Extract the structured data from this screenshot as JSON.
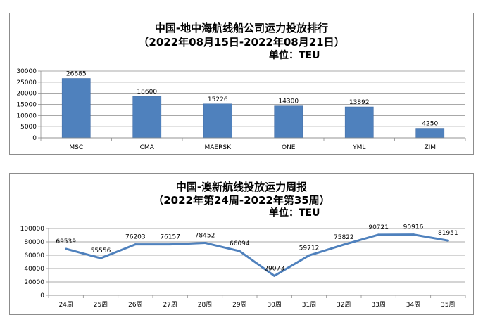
{
  "chart_data": [
    {
      "type": "bar",
      "title": "中国-地中海航线船公司运力投放排行",
      "subtitle": "（2022年08月15日-2022年08月21日）",
      "unit_label": "单位：TEU",
      "categories": [
        "MSC",
        "CMA",
        "MAERSK",
        "ONE",
        "YML",
        "ZIM"
      ],
      "values": [
        26685,
        18600,
        15226,
        14300,
        13892,
        4250
      ],
      "data_labels": [
        "26685",
        "18600",
        "15226",
        "14300",
        "13892",
        "4250"
      ],
      "ylim": [
        0,
        30000
      ],
      "yticks": [
        0,
        5000,
        10000,
        15000,
        20000,
        25000,
        30000
      ],
      "ytick_labels": [
        "0",
        "5000",
        "10000",
        "15000",
        "20000",
        "25000",
        "30000"
      ],
      "bar_color": "#4f81bd",
      "grid": true
    },
    {
      "type": "line",
      "title": "中国-澳新航线投放运力周报",
      "subtitle": "（2022年第24周-2022年第35周）",
      "unit_label": "单位：TEU",
      "categories": [
        "24周",
        "25周",
        "26周",
        "27周",
        "28周",
        "29周",
        "30周",
        "31周",
        "32周",
        "33周",
        "34周",
        "35周"
      ],
      "values": [
        69539,
        55556,
        76203,
        76157,
        78452,
        66094,
        29073,
        59712,
        75822,
        90721,
        90916,
        81951
      ],
      "data_labels": [
        "69539",
        "55556",
        "76203",
        "76157",
        "78452",
        "66094",
        "29073",
        "59712",
        "75822",
        "90721",
        "90916",
        "81951"
      ],
      "ylim": [
        0,
        100000
      ],
      "yticks": [
        0,
        20000,
        40000,
        60000,
        80000,
        100000
      ],
      "ytick_labels": [
        "0",
        "20000",
        "40000",
        "60000",
        "80000",
        "100000"
      ],
      "line_color": "#4f81bd",
      "grid": true
    }
  ]
}
